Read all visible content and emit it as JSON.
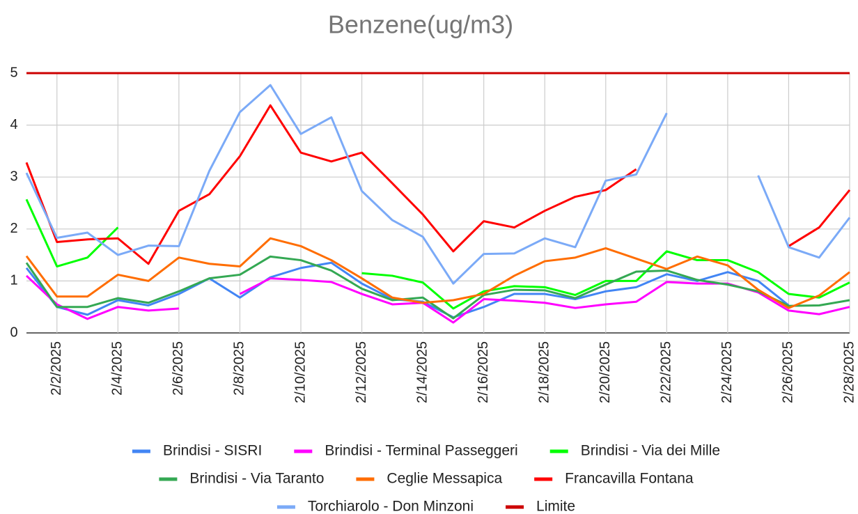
{
  "chart_data": {
    "type": "line",
    "title": "Benzene(ug/m3)",
    "categories": [
      null,
      "2/2/2025",
      null,
      "2/4/2025",
      null,
      "2/6/2025",
      null,
      "2/8/2025",
      null,
      "2/10/2025",
      null,
      "2/12/2025",
      null,
      "2/14/2025",
      null,
      "2/16/2025",
      null,
      "2/18/2025",
      null,
      "2/20/2025",
      null,
      "2/22/2025",
      null,
      "2/24/2025",
      null,
      "2/26/2025",
      null,
      "2/28/2025"
    ],
    "ylim": [
      0,
      5
    ],
    "yticks": [
      0,
      1,
      2,
      3,
      4,
      5
    ],
    "grid": true,
    "series": [
      {
        "name": "Brindisi - SISRI",
        "color": "#4285f4",
        "values": [
          1.25,
          0.5,
          0.35,
          0.63,
          0.53,
          0.75,
          1.05,
          0.68,
          1.07,
          1.25,
          1.35,
          0.95,
          0.65,
          0.6,
          0.3,
          0.5,
          0.75,
          0.75,
          0.65,
          0.8,
          0.88,
          1.13,
          1.0,
          1.17,
          1.0,
          0.53,
          null,
          null
        ]
      },
      {
        "name": "Brindisi - Terminal Passeggeri",
        "color": "#ff00ff",
        "values": [
          1.1,
          0.55,
          0.27,
          0.5,
          0.43,
          0.47,
          null,
          0.75,
          1.05,
          1.02,
          0.98,
          0.75,
          0.55,
          0.58,
          0.2,
          0.65,
          0.62,
          0.58,
          0.48,
          0.55,
          0.6,
          0.98,
          0.95,
          0.95,
          0.78,
          0.43,
          0.36,
          0.5
        ]
      },
      {
        "name": "Brindisi - Via dei Mille",
        "color": "#00ff00",
        "values": [
          2.57,
          1.28,
          1.45,
          2.03,
          null,
          null,
          null,
          null,
          null,
          null,
          null,
          1.15,
          1.1,
          0.97,
          0.47,
          0.8,
          0.9,
          0.88,
          0.73,
          1.0,
          1.0,
          1.57,
          1.4,
          1.4,
          1.17,
          0.75,
          0.68,
          0.97
        ]
      },
      {
        "name": "Brindisi - Via Taranto",
        "color": "#34a853",
        "values": [
          1.35,
          0.5,
          0.5,
          0.67,
          0.58,
          0.8,
          1.05,
          1.12,
          1.47,
          1.4,
          1.2,
          0.85,
          0.63,
          0.68,
          0.28,
          0.73,
          0.83,
          0.82,
          0.67,
          0.93,
          1.18,
          1.2,
          1.02,
          0.93,
          0.8,
          0.52,
          0.53,
          0.63
        ]
      },
      {
        "name": "Ceglie Messapica",
        "color": "#ff6d01",
        "values": [
          1.48,
          0.7,
          0.7,
          1.12,
          1.0,
          1.45,
          1.33,
          1.28,
          1.82,
          1.67,
          1.4,
          1.05,
          0.68,
          0.58,
          0.63,
          0.75,
          1.1,
          1.38,
          1.45,
          1.63,
          1.43,
          1.23,
          1.47,
          1.3,
          0.83,
          0.48,
          0.72,
          1.17
        ]
      },
      {
        "name": "Francavilla Fontana",
        "color": "#ff0000",
        "values": [
          3.28,
          1.75,
          1.8,
          1.82,
          1.33,
          2.35,
          2.67,
          3.4,
          4.38,
          3.47,
          3.3,
          3.47,
          2.88,
          2.28,
          1.57,
          2.15,
          2.03,
          2.35,
          2.62,
          2.75,
          3.15,
          null,
          null,
          null,
          null,
          1.67,
          2.03,
          2.75
        ]
      },
      {
        "name": "Torchiarolo - Don Minzoni",
        "color": "#7baaf7",
        "values": [
          3.08,
          1.83,
          1.93,
          1.5,
          1.68,
          1.67,
          3.12,
          4.25,
          4.77,
          3.83,
          4.15,
          2.73,
          2.17,
          1.85,
          0.95,
          1.52,
          1.53,
          1.82,
          1.65,
          2.93,
          3.05,
          4.23,
          null,
          null,
          3.03,
          1.65,
          1.45,
          2.22
        ]
      },
      {
        "name": "Limite",
        "color": "#cc0000",
        "values": [
          5,
          5,
          5,
          5,
          5,
          5,
          5,
          5,
          5,
          5,
          5,
          5,
          5,
          5,
          5,
          5,
          5,
          5,
          5,
          5,
          5,
          5,
          5,
          5,
          5,
          5,
          5,
          5
        ]
      }
    ]
  }
}
